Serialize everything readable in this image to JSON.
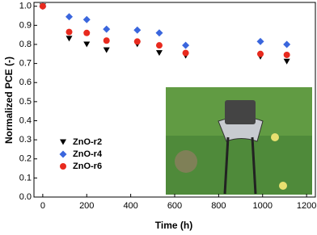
{
  "chart_data": {
    "type": "scatter",
    "x_label": "Time (h)",
    "y_label": "Normalized PCE (-)",
    "xlim": [
      -40,
      1240
    ],
    "ylim": [
      0,
      1.02
    ],
    "xticks": [
      0,
      200,
      400,
      600,
      800,
      1000,
      1200
    ],
    "yticks": [
      {
        "value": 0,
        "label": "0.0"
      },
      {
        "value": 0.1,
        "label": "0.1"
      },
      {
        "value": 0.2,
        "label": "0.2"
      },
      {
        "value": 0.3,
        "label": "0.3"
      },
      {
        "value": 0.4,
        "label": "0.4"
      },
      {
        "value": 0.5,
        "label": "0.5"
      },
      {
        "value": 0.6,
        "label": "0.6"
      },
      {
        "value": 0.7,
        "label": "0.7"
      },
      {
        "value": 0.8,
        "label": "0.8"
      },
      {
        "value": 0.9,
        "label": "0.9"
      },
      {
        "value": 1.0,
        "label": "1.0"
      }
    ],
    "series": [
      {
        "name": "ZnO-r2",
        "color": "#000000",
        "marker": "triangle-down",
        "x": [
          0,
          120,
          200,
          290,
          430,
          530,
          650,
          990,
          1110
        ],
        "values": [
          1.0,
          0.83,
          0.8,
          0.77,
          0.8,
          0.755,
          0.74,
          0.735,
          0.71
        ]
      },
      {
        "name": "ZnO-r4",
        "color": "#3a66dd",
        "marker": "diamond",
        "x": [
          0,
          120,
          200,
          290,
          430,
          530,
          650,
          990,
          1110
        ],
        "values": [
          1.0,
          0.945,
          0.93,
          0.88,
          0.875,
          0.86,
          0.795,
          0.815,
          0.8
        ]
      },
      {
        "name": "ZnO-r6",
        "color": "#e82a1e",
        "marker": "circle",
        "x": [
          0,
          120,
          200,
          290,
          430,
          530,
          650,
          990,
          1110
        ],
        "values": [
          1.0,
          0.865,
          0.86,
          0.82,
          0.815,
          0.795,
          0.755,
          0.75,
          0.745
        ]
      }
    ]
  }
}
